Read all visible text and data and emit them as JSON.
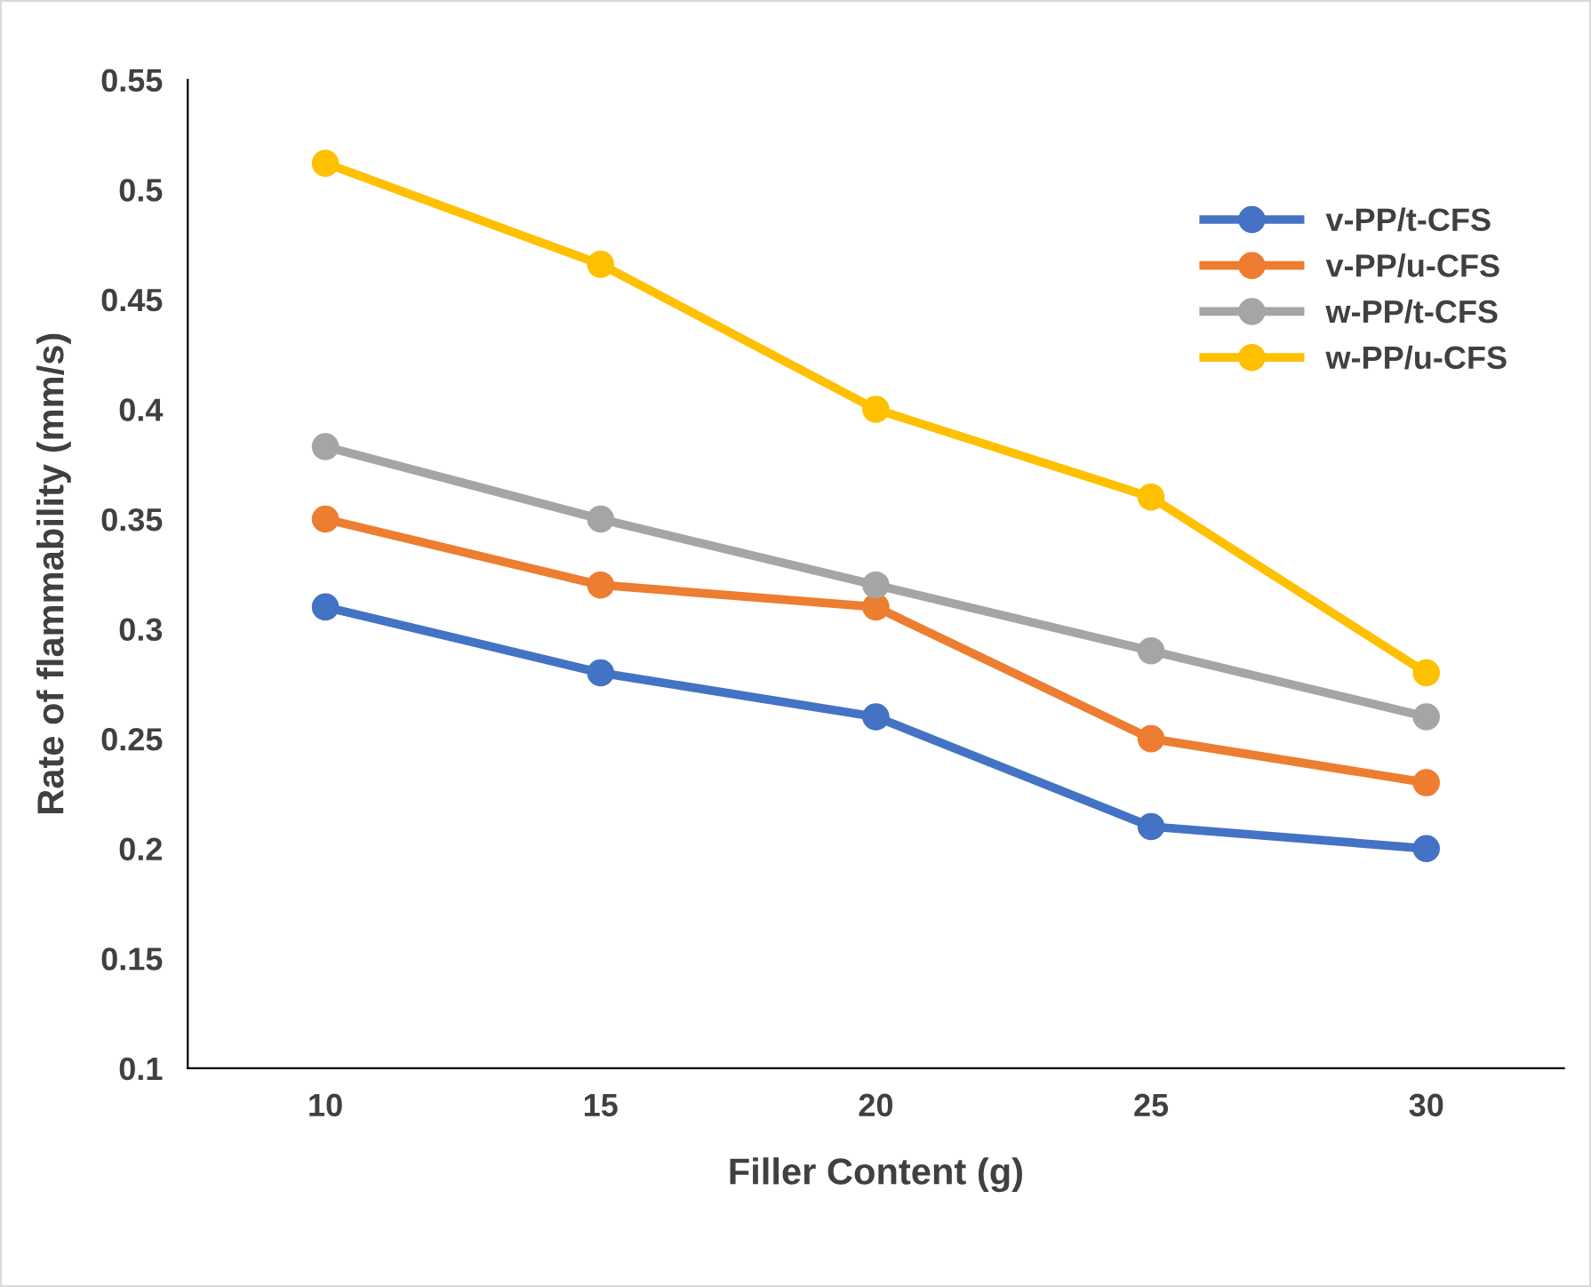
{
  "chart_data": {
    "type": "line",
    "xlabel": "Filler Content (g)",
    "ylabel": "Rate of flammability (mm/s)",
    "categories": [
      "10",
      "15",
      "20",
      "25",
      "30"
    ],
    "series": [
      {
        "name": "v-PP/t-CFS",
        "color": "#4472c4",
        "values": [
          0.31,
          0.28,
          0.26,
          0.21,
          0.2
        ]
      },
      {
        "name": "v-PP/u-CFS",
        "color": "#ed7d31",
        "values": [
          0.35,
          0.32,
          0.31,
          0.25,
          0.23
        ]
      },
      {
        "name": "w-PP/t-CFS",
        "color": "#a5a5a5",
        "values": [
          0.383,
          0.35,
          0.32,
          0.29,
          0.26
        ]
      },
      {
        "name": "w-PP/u-CFS",
        "color": "#ffc000",
        "values": [
          0.512,
          0.466,
          0.4,
          0.36,
          0.28
        ]
      }
    ],
    "ylim": [
      0.1,
      0.55
    ],
    "yticks": [
      0.1,
      0.15,
      0.2,
      0.25,
      0.3,
      0.35,
      0.4,
      0.45,
      0.5,
      0.55
    ],
    "grid": false,
    "legend": "top right",
    "marker": "circle",
    "line_style": "solid"
  }
}
